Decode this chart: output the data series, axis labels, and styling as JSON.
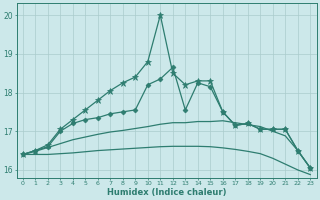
{
  "xlabel": "Humidex (Indice chaleur)",
  "xlim": [
    -0.5,
    23.5
  ],
  "ylim": [
    15.8,
    20.3
  ],
  "xticks": [
    0,
    1,
    2,
    3,
    4,
    5,
    6,
    7,
    8,
    9,
    10,
    11,
    12,
    13,
    14,
    15,
    16,
    17,
    18,
    19,
    20,
    21,
    22,
    23
  ],
  "yticks": [
    16,
    17,
    18,
    19,
    20
  ],
  "background_color": "#cce8ea",
  "grid_color": "#aacccc",
  "line_color": "#2e7d70",
  "lines": [
    {
      "y": [
        16.4,
        16.5,
        16.6,
        17.0,
        17.2,
        17.3,
        17.35,
        17.45,
        17.5,
        17.55,
        18.2,
        18.35,
        18.65,
        17.55,
        18.25,
        18.15,
        17.5,
        17.15,
        17.2,
        17.05,
        17.05,
        17.05,
        16.5,
        16.05
      ],
      "marker": "D",
      "markersize": 2.5,
      "linewidth": 0.9
    },
    {
      "y": [
        16.4,
        16.5,
        16.65,
        17.05,
        17.3,
        17.55,
        17.8,
        18.05,
        18.25,
        18.4,
        18.8,
        20.0,
        18.5,
        18.2,
        18.3,
        18.3,
        17.5,
        17.15,
        17.2,
        17.05,
        17.05,
        17.05,
        16.5,
        16.05
      ],
      "marker": "*",
      "markersize": 5,
      "linewidth": 0.9
    },
    {
      "y": [
        16.4,
        16.48,
        16.58,
        16.68,
        16.78,
        16.85,
        16.92,
        16.98,
        17.02,
        17.07,
        17.12,
        17.18,
        17.22,
        17.22,
        17.25,
        17.25,
        17.27,
        17.22,
        17.17,
        17.12,
        17.0,
        16.88,
        16.5,
        16.05
      ],
      "marker": null,
      "markersize": 0,
      "linewidth": 0.9
    },
    {
      "y": [
        16.4,
        16.4,
        16.4,
        16.42,
        16.44,
        16.47,
        16.5,
        16.52,
        16.54,
        16.56,
        16.58,
        16.6,
        16.61,
        16.61,
        16.61,
        16.6,
        16.57,
        16.53,
        16.48,
        16.42,
        16.3,
        16.15,
        16.0,
        15.88
      ],
      "marker": null,
      "markersize": 0,
      "linewidth": 0.9
    }
  ]
}
